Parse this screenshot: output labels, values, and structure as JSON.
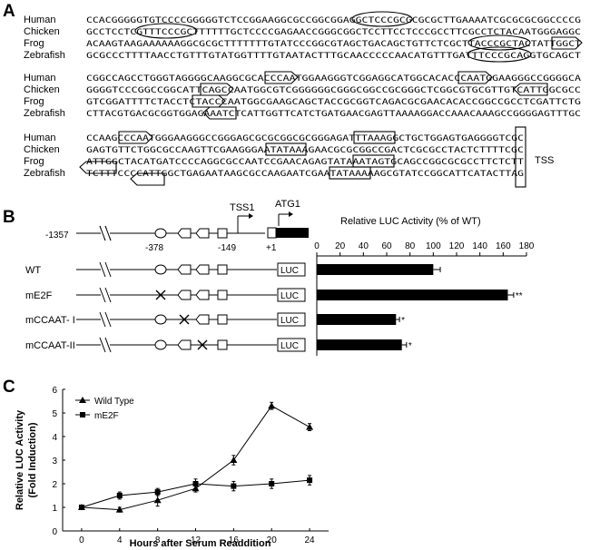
{
  "panelA": {
    "label": "A",
    "tss_label": "TSS",
    "blocks": [
      {
        "rows": [
          {
            "species": "Human",
            "seq": "CCACGGGGGTGTCCCCGGGGGTCTCCGGAAGGCGCCGGCGGAGGCTCCCGCGCGCGCTTGAAAATCGCGCGCGGCCCCG"
          },
          {
            "species": "Chicken",
            "seq": "GCCTCCTCGTTTCCCGCTTTTTTGCTCCCCGAGAACCGGGCGGCTCCTTCCTCCCGCCTTCGCCTCTACAATGGGAGGC"
          },
          {
            "species": "Frog",
            "seq": "ACAAGTAAGAAAAAAGGCGCGCTTTTTTTGTATCCCGGCGTAGCTGACAGCTGTTCTCGCTTACCCGCTACTATTGGCT"
          },
          {
            "species": "Zebrafish",
            "seq": "GCGCCCTTTTAACCTGTTTGTATGGTTTTGTAATACTTTGCAACCCCCAACATGTTTGATTTCCCGCAGGTGCAGCT"
          }
        ]
      },
      {
        "rows": [
          {
            "species": "Human",
            "seq": "CGGCCAGCCTGGGTAGGGGCAAGGCGCACCCAATGGAAGGGTCGGAGGCATGGCACACCCAATGGAAGGGCCGGGGCA"
          },
          {
            "species": "Chicken",
            "seq": "GGGGTCCCGGCCGGCATTCAGCCAATGGCGTCGGGGGGCGGGCGGCCGCGGGCTCGGCGTGCGTTGTCATTGGCGCC"
          },
          {
            "species": "Frog",
            "seq": "GTCGGATTTTCTACCTCTACCCAATGGCGAAGCAGCTACCGCGGTCAGACGCGAACACACCGGCCGCCTCGATTCTG"
          },
          {
            "species": "Zebrafish",
            "seq": "CTTACGTGACGCGGTGGAGAAATCTCATTGGTTCATCTGATGAACGAGTTAAAAGGACCAAACAAAGCCGGGGAGTTTGC"
          }
        ]
      },
      {
        "rows": [
          {
            "species": "Human",
            "seq": "CCAAGCCCAATGGGAAGGGCCGGGAGCGCGCGGCGCGGGAGATTTAAAGGCTGCTGGAGTGAGGGGTCGC"
          },
          {
            "species": "Chicken",
            "seq": "GAGTGTTCTGGCGCCAAGTTCGAAGGGAATATAAAGAACGCGCGGCCGACTCGCGCCTACTCTTTTCGC"
          },
          {
            "species": "Frog",
            "seq": "ATTGGCTACATGATCCCCAGGCGCCAATCCGAACAGAGTATAAATAGTGCAGCCGGCGCGCCTTCTCTT"
          },
          {
            "species": "Zebrafish",
            "seq": "TCTTTCCCCATTGGCTGAGAATAAGCGCCAAGAATCGAATATAAAAAGCGTATCCGGCATTCATACTTAG"
          }
        ]
      }
    ]
  },
  "panelB": {
    "label": "B",
    "positions": {
      "upstream": "-1357",
      "e2f": "-378",
      "ccaat": "-149",
      "plus1": "+1"
    },
    "tss1_label": "TSS1",
    "atg_label": "ATG1",
    "reporter_label": "LUC",
    "bar_axis_title": "Relative LUC Activity (% of WT)",
    "constructs": [
      {
        "name": "WT",
        "mutated": "",
        "significance": ""
      },
      {
        "name": "mE2F",
        "mutated": "e2f",
        "significance": "**"
      },
      {
        "name": "mCCAAT- I",
        "mutated": "ccaat1",
        "significance": "*"
      },
      {
        "name": "mCCAAT-II",
        "mutated": "ccaat2",
        "significance": "*"
      }
    ]
  },
  "panelC": {
    "label": "C"
  },
  "chart_data": [
    {
      "type": "bar",
      "orientation": "horizontal",
      "title": "Relative LUC Activity (% of WT)",
      "categories": [
        "WT",
        "mE2F",
        "mCCAAT- I",
        "mCCAAT-II"
      ],
      "values": [
        100,
        164,
        68,
        73
      ],
      "errors": [
        6,
        5,
        3,
        4
      ],
      "significance": [
        "",
        "**",
        "*",
        "*"
      ],
      "xlim": [
        0,
        180
      ],
      "xticks": [
        0,
        20,
        40,
        60,
        80,
        100,
        120,
        140,
        160,
        180
      ],
      "grid": false
    },
    {
      "type": "line",
      "xlabel": "Hours after Serum Readdition",
      "ylabel": "Relative LUC Activity (Fold Induction)",
      "ylabel_lines": [
        "Relative LUC Activity",
        "(Fold Induction)"
      ],
      "x": [
        0,
        4,
        8,
        12,
        16,
        20,
        24
      ],
      "xlim": [
        -2,
        26
      ],
      "ylim": [
        0,
        6
      ],
      "yticks": [
        0,
        1,
        2,
        3,
        4,
        5,
        6
      ],
      "legend": "top-left",
      "grid": false,
      "series": [
        {
          "name": "Wild Type",
          "marker": "triangle",
          "values": [
            1.0,
            0.9,
            1.3,
            1.8,
            3.0,
            5.3,
            4.4
          ],
          "errors": [
            0.05,
            0.1,
            0.25,
            0.15,
            0.2,
            0.15,
            0.15
          ]
        },
        {
          "name": "mE2F",
          "marker": "square",
          "values": [
            1.0,
            1.5,
            1.65,
            2.0,
            1.9,
            2.0,
            2.15
          ],
          "errors": [
            0.05,
            0.15,
            0.15,
            0.2,
            0.2,
            0.2,
            0.2
          ]
        }
      ]
    }
  ]
}
